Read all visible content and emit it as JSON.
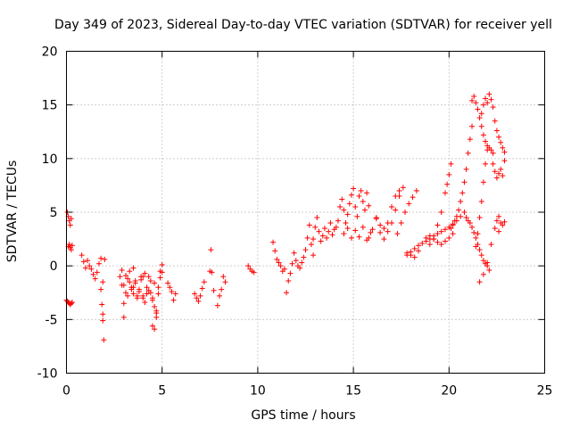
{
  "chart_data": {
    "type": "scatter",
    "title": "Day 349 of 2023, Sidereal Day-to-day VTEC variation (SDTVAR) for receiver yell",
    "xlabel": "GPS time / hours",
    "ylabel": "SDTVAR / TECUs",
    "xlim": [
      0,
      25
    ],
    "ylim": [
      -10,
      20
    ],
    "xticks": [
      0,
      5,
      10,
      15,
      20,
      25
    ],
    "yticks": [
      -10,
      -5,
      0,
      5,
      10,
      15,
      20
    ],
    "xtick_labels": [
      "0",
      "5",
      "10",
      "15",
      "20",
      "25"
    ],
    "ytick_labels": [
      "-10",
      "-5",
      "0",
      "5",
      "10",
      "15",
      "20"
    ],
    "grid": true,
    "marker": "+",
    "color": "#ff0000",
    "series": [
      {
        "name": "SDTVAR",
        "x": [
          0.0,
          0.05,
          0.1,
          0.15,
          0.2,
          0.25,
          0.3,
          0.05,
          0.1,
          0.15,
          0.2,
          0.25,
          0.1,
          0.15,
          0.2,
          0.25,
          0.3,
          0.8,
          0.9,
          1.0,
          1.1,
          1.2,
          1.3,
          1.4,
          1.5,
          1.6,
          1.7,
          1.8,
          1.8,
          1.85,
          1.9,
          1.9,
          1.95,
          1.9,
          2.0,
          2.8,
          2.9,
          3.0,
          3.1,
          3.2,
          3.3,
          3.4,
          3.5,
          3.6,
          3.7,
          3.8,
          3.9,
          4.0,
          4.1,
          4.2,
          4.3,
          4.4,
          4.5,
          4.6,
          4.7,
          4.8,
          4.9,
          5.0,
          3.0,
          3.2,
          3.4,
          3.6,
          3.8,
          4.0,
          4.2,
          4.4,
          4.6,
          4.8,
          5.0,
          2.9,
          3.1,
          3.3,
          3.5,
          3.7,
          3.9,
          4.1,
          4.3,
          4.5,
          4.7,
          4.9,
          3.0,
          3.5,
          4.0,
          4.5,
          4.6,
          4.7,
          5.3,
          5.4,
          5.5,
          5.6,
          5.7,
          6.7,
          6.8,
          6.9,
          7.0,
          7.1,
          7.2,
          7.5,
          7.55,
          7.6,
          7.7,
          7.9,
          8.0,
          8.1,
          8.2,
          8.3,
          9.5,
          9.6,
          9.7,
          9.8,
          10.8,
          10.9,
          11.0,
          11.1,
          11.2,
          11.3,
          11.4,
          11.5,
          11.6,
          11.7,
          11.8,
          11.9,
          12.0,
          12.1,
          12.2,
          12.3,
          12.4,
          12.5,
          12.6,
          12.7,
          12.8,
          12.9,
          12.9,
          13.0,
          13.1,
          13.2,
          13.3,
          13.4,
          13.5,
          13.6,
          13.7,
          13.8,
          13.9,
          14.0,
          14.1,
          14.2,
          14.3,
          14.4,
          14.5,
          14.6,
          14.7,
          14.8,
          14.9,
          15.0,
          15.1,
          15.2,
          15.3,
          15.4,
          15.5,
          15.6,
          15.7,
          15.8,
          14.5,
          14.7,
          14.9,
          15.1,
          15.3,
          15.5,
          15.7,
          15.9,
          15.8,
          16.0,
          16.2,
          16.4,
          16.6,
          16.8,
          17.0,
          17.2,
          17.4,
          16.2,
          16.4,
          16.6,
          16.8,
          17.0,
          17.2,
          17.4,
          17.6,
          17.8,
          18.0,
          18.2,
          18.4,
          17.3,
          17.5,
          17.7,
          17.9,
          18.1,
          18.3,
          17.8,
          18.0,
          18.2,
          18.4,
          18.6,
          18.8,
          19.0,
          19.2,
          19.4,
          19.6,
          19.8,
          20.0,
          20.2,
          20.4,
          20.6,
          20.8,
          18.8,
          19.0,
          19.2,
          19.4,
          19.6,
          19.8,
          20.0,
          20.2,
          19.0,
          19.2,
          19.4,
          19.6,
          19.8,
          19.9,
          20.0,
          20.1,
          20.1,
          20.2,
          20.3,
          20.4,
          20.5,
          20.6,
          20.7,
          20.8,
          20.9,
          21.0,
          21.1,
          21.2,
          20.9,
          21.0,
          21.1,
          21.2,
          21.3,
          21.4,
          21.5,
          21.6,
          21.7,
          21.8,
          21.9,
          22.0,
          22.1,
          21.4,
          21.5,
          21.6,
          21.7,
          21.8,
          21.9,
          22.0,
          21.7,
          21.8,
          21.9,
          22.0,
          22.1,
          22.2,
          22.3,
          22.4,
          22.5,
          22.6,
          22.7,
          22.8,
          22.9,
          21.2,
          21.3,
          21.4,
          21.5,
          21.6,
          21.7,
          21.8,
          21.9,
          22.0,
          22.1,
          22.2,
          22.3,
          22.3,
          22.4,
          22.5,
          22.6,
          22.7,
          22.8,
          22.9,
          21.6,
          21.8,
          22.0,
          22.2,
          22.4,
          22.6,
          22.5,
          22.6,
          22.7,
          22.8,
          22.9
        ],
        "y": [
          -3.2,
          -3.3,
          -3.4,
          -3.5,
          -3.6,
          -3.5,
          -3.4,
          5.0,
          4.6,
          4.2,
          3.8,
          4.4,
          1.8,
          2.0,
          1.7,
          1.5,
          1.9,
          1.0,
          0.4,
          -0.2,
          0.5,
          0.0,
          -0.3,
          -0.8,
          -1.2,
          -0.6,
          0.2,
          0.7,
          -2.2,
          -3.6,
          -4.5,
          -5.1,
          -6.9,
          -1.5,
          0.6,
          -1.0,
          -1.8,
          -4.8,
          -2.5,
          -1.2,
          -0.5,
          -2.0,
          -2.6,
          -1.4,
          -3.0,
          -2.2,
          -1.0,
          -2.8,
          -3.4,
          -2.0,
          -1.0,
          -2.5,
          -3.2,
          -1.6,
          -4.2,
          -2.6,
          -0.5,
          0.1,
          -3.5,
          -2.8,
          -2.2,
          -1.6,
          -2.4,
          -3.0,
          -2.6,
          -1.4,
          -3.8,
          -2.0,
          -0.6,
          -0.4,
          -0.9,
          -1.5,
          -2.0,
          -2.8,
          -1.3,
          -0.7,
          -2.3,
          -3.0,
          -4.4,
          -1.1,
          -1.8,
          -0.2,
          -1.0,
          -5.6,
          -5.9,
          -4.8,
          -1.6,
          -2.0,
          -2.4,
          -3.2,
          -2.6,
          -2.6,
          -3.0,
          -3.3,
          -2.8,
          -2.1,
          -1.5,
          -0.5,
          1.5,
          -0.6,
          -2.3,
          -3.7,
          -2.8,
          -2.2,
          -1.0,
          -1.5,
          0.0,
          -0.3,
          -0.5,
          -0.6,
          2.2,
          1.4,
          0.6,
          0.3,
          0.0,
          -0.5,
          -0.3,
          -2.5,
          -1.4,
          -0.7,
          0.2,
          1.2,
          0.5,
          0.0,
          -0.2,
          0.3,
          0.8,
          1.5,
          2.6,
          3.8,
          2.0,
          1.0,
          2.5,
          3.6,
          4.5,
          3.2,
          2.3,
          2.8,
          3.5,
          2.6,
          3.2,
          4.0,
          2.9,
          3.4,
          3.6,
          4.2,
          5.5,
          6.2,
          5.2,
          4.0,
          4.8,
          5.8,
          6.6,
          7.2,
          5.5,
          4.6,
          6.5,
          7.0,
          6.0,
          5.2,
          6.8,
          5.6,
          3.0,
          3.5,
          2.6,
          3.3,
          2.7,
          3.6,
          2.4,
          3.1,
          2.6,
          3.4,
          4.5,
          3.1,
          2.5,
          3.2,
          4.0,
          5.2,
          6.5,
          4.4,
          3.8,
          3.5,
          4.0,
          5.5,
          6.5,
          7.0,
          7.3,
          1.2,
          1.0,
          0.8,
          1.4,
          3.0,
          4.0,
          5.0,
          5.8,
          6.4,
          7.0,
          1.0,
          1.3,
          1.6,
          1.9,
          2.1,
          2.3,
          2.5,
          2.8,
          3.0,
          3.2,
          3.4,
          3.6,
          3.9,
          4.2,
          4.6,
          5.0,
          2.6,
          2.8,
          2.5,
          2.2,
          2.0,
          2.3,
          2.6,
          3.0,
          2.0,
          2.5,
          3.8,
          5.0,
          6.8,
          7.6,
          8.5,
          9.5,
          3.5,
          3.8,
          4.2,
          4.6,
          5.2,
          6.0,
          6.8,
          7.8,
          9.0,
          10.5,
          11.8,
          13.0,
          4.5,
          4.2,
          4.0,
          3.6,
          3.1,
          2.6,
          2.0,
          1.5,
          1.0,
          0.5,
          0.2,
          0.0,
          -0.4,
          1.8,
          3.0,
          4.5,
          6.0,
          7.8,
          9.5,
          10.8,
          14.2,
          15.0,
          15.6,
          15.2,
          16.0,
          15.5,
          14.8,
          13.5,
          12.6,
          12.0,
          11.5,
          11.0,
          10.6,
          15.4,
          15.8,
          15.2,
          14.6,
          13.8,
          13.0,
          12.2,
          11.6,
          11.2,
          11.0,
          10.8,
          10.5,
          9.5,
          8.8,
          8.2,
          8.6,
          9.0,
          8.4,
          9.8,
          -1.5,
          -0.8,
          0.3,
          2.0,
          3.5,
          3.2,
          4.2,
          4.6,
          4.0,
          3.8,
          4.1
        ]
      }
    ]
  }
}
